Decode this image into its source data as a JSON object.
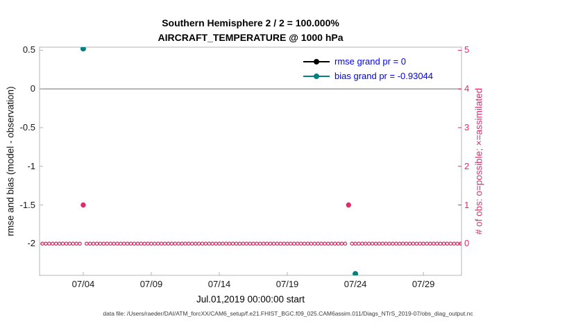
{
  "chart_data": {
    "type": "line",
    "title": "Southern Hemisphere 2 / 2 = 100.000%",
    "subtitle": "AIRCRAFT_TEMPERATURE @ 1000 hPa",
    "xlabel": "Jul.01,2019 00:00:00 start",
    "left_axis": {
      "label": "rmse and bias (model - observation)",
      "lim": [
        -2.41,
        0.54
      ],
      "ticks": [
        {
          "v": 0.5,
          "label": "0.5"
        },
        {
          "v": 0,
          "label": "0"
        },
        {
          "v": -0.5,
          "label": "-0.5"
        },
        {
          "v": -1,
          "label": "-1"
        },
        {
          "v": -1.5,
          "label": "-1.5"
        },
        {
          "v": -2,
          "label": "-2"
        }
      ]
    },
    "right_axis": {
      "label": "# of obs: o=possible; ×=assimilated",
      "lim": [
        -0.82,
        5.08
      ],
      "ticks": [
        {
          "v": 5,
          "label": "5"
        },
        {
          "v": 4,
          "label": "4"
        },
        {
          "v": 3,
          "label": "3"
        },
        {
          "v": 2,
          "label": "2"
        },
        {
          "v": 1,
          "label": "1"
        },
        {
          "v": 0,
          "label": "0"
        }
      ]
    },
    "x_axis": {
      "lim_days": [
        -0.21,
        30.8
      ],
      "ticks": [
        {
          "day": 3,
          "label": "07/04"
        },
        {
          "day": 8,
          "label": "07/09"
        },
        {
          "day": 13,
          "label": "07/14"
        },
        {
          "day": 18,
          "label": "07/19"
        },
        {
          "day": 23,
          "label": "07/24"
        },
        {
          "day": 28,
          "label": "07/29"
        }
      ]
    },
    "zero_line_value": 0,
    "series": {
      "rmse": {
        "name": "rmse",
        "color": "#000000",
        "points": []
      },
      "bias": {
        "name": "bias",
        "color": "#008080",
        "points": [
          {
            "day": 3,
            "value": 0.52
          },
          {
            "day": 23,
            "value": -2.39
          }
        ]
      },
      "obs_possible": {
        "name": "# of obs possible",
        "color": "#de2d6d",
        "axis": "right",
        "marker": "o",
        "baseline_value": 0,
        "interval_days": 0.25,
        "from_day": 0,
        "to_day": 30.75,
        "exceptions": [
          {
            "day": 3,
            "value": 1
          },
          {
            "day": 22.5,
            "value": 1
          }
        ]
      }
    },
    "legend_items": [
      {
        "series": "rmse",
        "label": "rmse grand pr = 0",
        "color": "#000000"
      },
      {
        "series": "bias",
        "label": "bias grand pr = -0.93044",
        "color": "#008080"
      }
    ],
    "colors": {
      "obs_accent": "#de2d6d",
      "bias_accent": "#008080",
      "legend_text": "#0000ee",
      "zero_line": "#a9a9a9",
      "box": "#b5b5b5",
      "tick_text": "#171717"
    }
  },
  "footer": {
    "data_file_note": "data file: /Users/raeder/DAI/ATM_forcXX/CAM6_setup/f.e21.FHIST_BGC.f09_025.CAM6assim.011/Diags_NTrS_2019-07/obs_diag_output.nc"
  }
}
